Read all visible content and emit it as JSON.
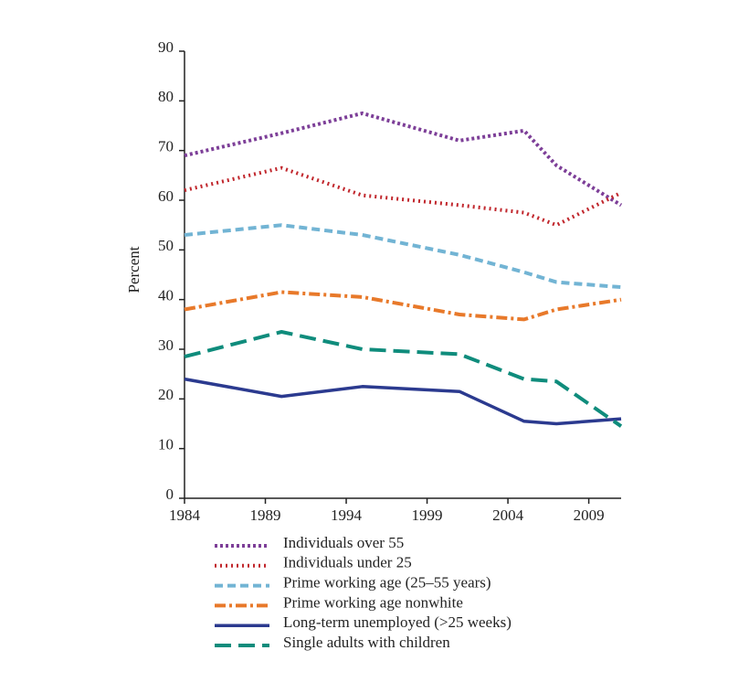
{
  "chart_data": {
    "type": "line",
    "y_label": "Percent",
    "x": [
      1984,
      1990,
      1995,
      2001,
      2005,
      2007,
      2011
    ],
    "xlim": [
      1984,
      2011
    ],
    "xticks": [
      1984,
      1989,
      1994,
      1999,
      2004,
      2009
    ],
    "ylim": [
      0,
      90
    ],
    "yticks": [
      0,
      10,
      20,
      30,
      40,
      50,
      60,
      70,
      80,
      90
    ],
    "series": [
      {
        "name": "Individuals over 55",
        "color": "#7d3f98",
        "dash": "3,3",
        "values": [
          69,
          73.5,
          77.5,
          72,
          74,
          67,
          59
        ]
      },
      {
        "name": "Individuals under 25",
        "color": "#c1272d",
        "dash": "2,4",
        "values": [
          62,
          66.5,
          61,
          59,
          57.5,
          55,
          61.5
        ]
      },
      {
        "name": "Prime working age (25–55 years)",
        "color": "#72b4d4",
        "dash": "9,5",
        "values": [
          53,
          55,
          53,
          49,
          45.5,
          43.5,
          42.5
        ]
      },
      {
        "name": "Prime working age nonwhite",
        "color": "#e8792a",
        "dash": "12,4,3,4",
        "values": [
          38,
          41.5,
          40.5,
          37,
          36,
          38,
          40
        ]
      },
      {
        "name": "Long-term unemployed (>25 weeks)",
        "color": "#2b3a8f",
        "dash": "none",
        "values": [
          24,
          20.5,
          22.5,
          21.5,
          15.5,
          15,
          16
        ]
      },
      {
        "name": "Single adults with children",
        "color": "#0f8c7c",
        "dash": "18,8",
        "values": [
          28.5,
          33.5,
          30,
          29,
          24,
          23.5,
          14.5
        ]
      }
    ]
  }
}
